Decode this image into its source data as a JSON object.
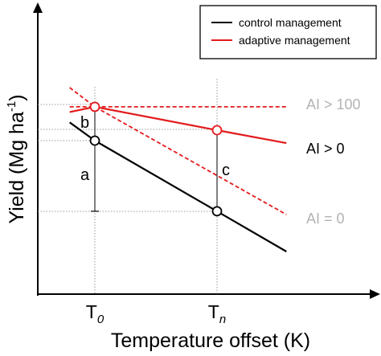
{
  "chart_data": {
    "type": "line",
    "xlabel": "Temperature offset (K)",
    "ylabel": "Yield (Mg ha",
    "ylabel_sup": "-1",
    "x_ticks": [
      {
        "label": "T",
        "sub": "0",
        "x": 0
      },
      {
        "label": "T",
        "sub": "n",
        "x": 1
      }
    ],
    "xlim": [
      -0.206,
      1.568
    ],
    "ylim": [
      -1.56,
      1.04
    ],
    "legend": {
      "position": "top-right",
      "entries": [
        {
          "name": "control management",
          "color": "#000000"
        },
        {
          "name": "adaptive management",
          "color": "#e31a1c"
        }
      ]
    },
    "series": [
      {
        "name": "control management",
        "color": "#000000",
        "style": "solid",
        "x": [
          -0.206,
          0,
          1,
          1.568
        ],
        "y": [
          0.133,
          0,
          -0.514,
          -0.807
        ],
        "markers_at_x": [
          0,
          1
        ]
      },
      {
        "name": "adaptive management",
        "color": "#e31a1c",
        "style": "solid",
        "x": [
          -0.206,
          0,
          1,
          1.568
        ],
        "y": [
          0.208,
          0.246,
          0.076,
          -0.018
        ],
        "markers_at_x": [
          0,
          1
        ]
      },
      {
        "color": "#e31a1c",
        "style": "dashed",
        "x": [
          -0.206,
          0,
          1,
          1.568
        ],
        "y": [
          0.246,
          0.246,
          0.246,
          0.246
        ]
      },
      {
        "color": "#e31a1c",
        "style": "dashed",
        "x": [
          -0.206,
          0,
          1.568
        ],
        "y": [
          0.386,
          0.246,
          -0.538
        ]
      }
    ],
    "annotations": {
      "region_labels": [
        {
          "text": "AI > 100",
          "color": "#b3b3b3",
          "y": 0.246
        },
        {
          "text": "AI > 0",
          "color": "#000000",
          "y": 0.0
        },
        {
          "text": "AI = 0",
          "color": "#b3b3b3",
          "y": -0.59
        }
      ],
      "brackets": [
        {
          "text": "b",
          "x": 0,
          "y_from": 0.0,
          "y_to": 0.246
        },
        {
          "text": "a",
          "x": 0,
          "y_from": -0.514,
          "y_to": 0.0
        },
        {
          "text": "c",
          "x": 1,
          "y_from": -0.514,
          "y_to": 0.076
        }
      ]
    }
  }
}
